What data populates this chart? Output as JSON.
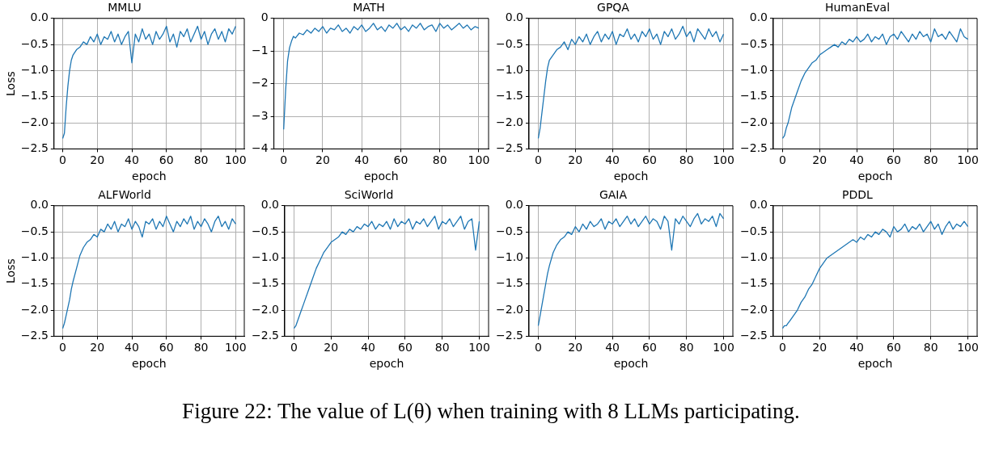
{
  "chart_data": [
    {
      "type": "line",
      "title": "MMLU",
      "xlabel": "epoch",
      "ylabel": "Loss",
      "grid": true,
      "xlim": [
        -5,
        105
      ],
      "ylim": [
        -2.5,
        0
      ],
      "xticks": [
        0,
        20,
        40,
        60,
        80,
        100
      ],
      "yticks": [
        {
          "value": -2.5,
          "label": "−2.5"
        },
        {
          "value": -2,
          "label": "−2.0"
        },
        {
          "value": -1.5,
          "label": "−1.5"
        },
        {
          "value": -1,
          "label": "−1.0"
        },
        {
          "value": -0.5,
          "label": "−0.5"
        },
        {
          "value": 0,
          "label": "0.0"
        }
      ],
      "x": [
        0,
        1,
        2,
        3,
        4,
        5,
        6,
        8,
        10,
        12,
        14,
        16,
        18,
        20,
        22,
        24,
        26,
        28,
        30,
        32,
        34,
        36,
        38,
        40,
        42,
        44,
        46,
        48,
        50,
        52,
        54,
        56,
        58,
        60,
        62,
        64,
        66,
        68,
        70,
        72,
        74,
        76,
        78,
        80,
        82,
        84,
        86,
        88,
        90,
        92,
        94,
        96,
        98,
        100
      ],
      "series": [
        {
          "color": "#1f77b4",
          "values": [
            -2.3,
            -2.2,
            -1.7,
            -1.3,
            -1.0,
            -0.8,
            -0.7,
            -0.6,
            -0.55,
            -0.45,
            -0.5,
            -0.35,
            -0.45,
            -0.3,
            -0.5,
            -0.35,
            -0.4,
            -0.25,
            -0.45,
            -0.3,
            -0.5,
            -0.35,
            -0.25,
            -0.85,
            -0.3,
            -0.45,
            -0.2,
            -0.4,
            -0.3,
            -0.5,
            -0.25,
            -0.4,
            -0.3,
            -0.15,
            -0.45,
            -0.3,
            -0.55,
            -0.25,
            -0.35,
            -0.2,
            -0.45,
            -0.3,
            -0.15,
            -0.4,
            -0.25,
            -0.5,
            -0.3,
            -0.2,
            -0.4,
            -0.25,
            -0.45,
            -0.2,
            -0.3,
            -0.15
          ]
        }
      ]
    },
    {
      "type": "line",
      "title": "MATH",
      "xlabel": "epoch",
      "grid": true,
      "xlim": [
        -5,
        105
      ],
      "ylim": [
        -4,
        0
      ],
      "xticks": [
        0,
        20,
        40,
        60,
        80,
        100
      ],
      "yticks": [
        {
          "value": -4,
          "label": "−4"
        },
        {
          "value": -3,
          "label": "−3"
        },
        {
          "value": -2,
          "label": "−2"
        },
        {
          "value": -1,
          "label": "−1"
        },
        0
      ],
      "x": [
        0,
        1,
        2,
        3,
        4,
        5,
        6,
        8,
        10,
        12,
        14,
        16,
        18,
        20,
        22,
        24,
        26,
        28,
        30,
        32,
        34,
        36,
        38,
        40,
        42,
        44,
        46,
        48,
        50,
        52,
        54,
        56,
        58,
        60,
        62,
        64,
        66,
        68,
        70,
        72,
        74,
        76,
        78,
        80,
        82,
        84,
        86,
        88,
        90,
        92,
        94,
        96,
        98,
        100
      ],
      "series": [
        {
          "color": "#1f77b4",
          "values": [
            -3.4,
            -2.2,
            -1.3,
            -0.9,
            -0.7,
            -0.55,
            -0.6,
            -0.45,
            -0.5,
            -0.35,
            -0.45,
            -0.3,
            -0.4,
            -0.25,
            -0.45,
            -0.3,
            -0.35,
            -0.2,
            -0.4,
            -0.3,
            -0.45,
            -0.25,
            -0.35,
            -0.2,
            -0.4,
            -0.3,
            -0.15,
            -0.35,
            -0.25,
            -0.4,
            -0.2,
            -0.3,
            -0.15,
            -0.35,
            -0.25,
            -0.4,
            -0.2,
            -0.3,
            -0.15,
            -0.35,
            -0.25,
            -0.2,
            -0.4,
            -0.15,
            -0.3,
            -0.2,
            -0.35,
            -0.25,
            -0.15,
            -0.3,
            -0.2,
            -0.35,
            -0.25,
            -0.3
          ]
        }
      ]
    },
    {
      "type": "line",
      "title": "GPQA",
      "xlabel": "epoch",
      "grid": true,
      "xlim": [
        -5,
        105
      ],
      "ylim": [
        -2.5,
        0
      ],
      "xticks": [
        0,
        20,
        40,
        60,
        80,
        100
      ],
      "yticks": [
        {
          "value": -2.5,
          "label": "−2.5"
        },
        {
          "value": -2,
          "label": "−2.0"
        },
        {
          "value": -1.5,
          "label": "−1.5"
        },
        {
          "value": -1,
          "label": "−1.0"
        },
        {
          "value": -0.5,
          "label": "−0.5"
        },
        {
          "value": 0,
          "label": "0.0"
        }
      ],
      "x": [
        0,
        1,
        2,
        3,
        4,
        5,
        6,
        8,
        10,
        12,
        14,
        16,
        18,
        20,
        22,
        24,
        26,
        28,
        30,
        32,
        34,
        36,
        38,
        40,
        42,
        44,
        46,
        48,
        50,
        52,
        54,
        56,
        58,
        60,
        62,
        64,
        66,
        68,
        70,
        72,
        74,
        76,
        78,
        80,
        82,
        84,
        86,
        88,
        90,
        92,
        94,
        96,
        98,
        100
      ],
      "series": [
        {
          "color": "#1f77b4",
          "values": [
            -2.3,
            -2.1,
            -1.8,
            -1.5,
            -1.2,
            -0.95,
            -0.8,
            -0.7,
            -0.6,
            -0.55,
            -0.45,
            -0.6,
            -0.4,
            -0.5,
            -0.35,
            -0.45,
            -0.3,
            -0.5,
            -0.35,
            -0.25,
            -0.45,
            -0.3,
            -0.4,
            -0.25,
            -0.5,
            -0.3,
            -0.35,
            -0.2,
            -0.4,
            -0.3,
            -0.45,
            -0.25,
            -0.35,
            -0.2,
            -0.4,
            -0.3,
            -0.5,
            -0.25,
            -0.35,
            -0.2,
            -0.4,
            -0.3,
            -0.15,
            -0.35,
            -0.25,
            -0.45,
            -0.2,
            -0.3,
            -0.4,
            -0.2,
            -0.35,
            -0.25,
            -0.45,
            -0.3
          ]
        }
      ]
    },
    {
      "type": "line",
      "title": "HumanEval",
      "xlabel": "epoch",
      "grid": true,
      "xlim": [
        -5,
        105
      ],
      "ylim": [
        -2.5,
        0
      ],
      "xticks": [
        0,
        20,
        40,
        60,
        80,
        100
      ],
      "yticks": [
        {
          "value": -2.5,
          "label": "−2.5"
        },
        {
          "value": -2,
          "label": "−2.0"
        },
        {
          "value": -1.5,
          "label": "−1.5"
        },
        {
          "value": -1,
          "label": "−1.0"
        },
        {
          "value": -0.5,
          "label": "−0.5"
        },
        {
          "value": 0,
          "label": "0.0"
        }
      ],
      "x": [
        0,
        1,
        2,
        3,
        4,
        5,
        6,
        8,
        10,
        12,
        14,
        16,
        18,
        20,
        22,
        24,
        26,
        28,
        30,
        32,
        34,
        36,
        38,
        40,
        42,
        44,
        46,
        48,
        50,
        52,
        54,
        56,
        58,
        60,
        62,
        64,
        66,
        68,
        70,
        72,
        74,
        76,
        78,
        80,
        82,
        84,
        86,
        88,
        90,
        92,
        94,
        96,
        98,
        100
      ],
      "series": [
        {
          "color": "#1f77b4",
          "values": [
            -2.3,
            -2.25,
            -2.1,
            -2.0,
            -1.85,
            -1.7,
            -1.6,
            -1.4,
            -1.2,
            -1.05,
            -0.95,
            -0.85,
            -0.8,
            -0.7,
            -0.65,
            -0.6,
            -0.55,
            -0.5,
            -0.55,
            -0.45,
            -0.5,
            -0.4,
            -0.45,
            -0.35,
            -0.45,
            -0.4,
            -0.3,
            -0.45,
            -0.35,
            -0.4,
            -0.3,
            -0.5,
            -0.35,
            -0.3,
            -0.4,
            -0.25,
            -0.35,
            -0.45,
            -0.3,
            -0.4,
            -0.25,
            -0.35,
            -0.3,
            -0.45,
            -0.2,
            -0.35,
            -0.3,
            -0.4,
            -0.25,
            -0.35,
            -0.45,
            -0.2,
            -0.35,
            -0.4
          ]
        }
      ]
    },
    {
      "type": "line",
      "title": "ALFWorld",
      "xlabel": "epoch",
      "ylabel": "Loss",
      "grid": true,
      "xlim": [
        -5,
        105
      ],
      "ylim": [
        -2.5,
        0
      ],
      "xticks": [
        0,
        20,
        40,
        60,
        80,
        100
      ],
      "yticks": [
        {
          "value": -2.5,
          "label": "−2.5"
        },
        {
          "value": -2,
          "label": "−2.0"
        },
        {
          "value": -1.5,
          "label": "−1.5"
        },
        {
          "value": -1,
          "label": "−1.0"
        },
        {
          "value": -0.5,
          "label": "−0.5"
        },
        {
          "value": 0,
          "label": "0.0"
        }
      ],
      "x": [
        0,
        1,
        2,
        3,
        4,
        5,
        6,
        8,
        10,
        12,
        14,
        16,
        18,
        20,
        22,
        24,
        26,
        28,
        30,
        32,
        34,
        36,
        38,
        40,
        42,
        44,
        46,
        48,
        50,
        52,
        54,
        56,
        58,
        60,
        62,
        64,
        66,
        68,
        70,
        72,
        74,
        76,
        78,
        80,
        82,
        84,
        86,
        88,
        90,
        92,
        94,
        96,
        98,
        100
      ],
      "series": [
        {
          "color": "#1f77b4",
          "values": [
            -2.35,
            -2.25,
            -2.1,
            -1.95,
            -1.8,
            -1.6,
            -1.45,
            -1.2,
            -0.95,
            -0.8,
            -0.7,
            -0.65,
            -0.55,
            -0.6,
            -0.45,
            -0.5,
            -0.35,
            -0.45,
            -0.3,
            -0.5,
            -0.35,
            -0.4,
            -0.25,
            -0.45,
            -0.3,
            -0.4,
            -0.6,
            -0.3,
            -0.35,
            -0.25,
            -0.45,
            -0.3,
            -0.4,
            -0.2,
            -0.35,
            -0.5,
            -0.3,
            -0.4,
            -0.25,
            -0.35,
            -0.2,
            -0.45,
            -0.3,
            -0.4,
            -0.25,
            -0.35,
            -0.5,
            -0.3,
            -0.2,
            -0.4,
            -0.3,
            -0.45,
            -0.25,
            -0.35
          ]
        }
      ]
    },
    {
      "type": "line",
      "title": "SciWorld",
      "xlabel": "epoch",
      "grid": true,
      "xlim": [
        -5,
        105
      ],
      "ylim": [
        -2.5,
        0
      ],
      "xticks": [
        0,
        20,
        40,
        60,
        80,
        100
      ],
      "yticks": [
        {
          "value": -2.5,
          "label": "−2.5"
        },
        {
          "value": -2,
          "label": "−2.0"
        },
        {
          "value": -1.5,
          "label": "−1.5"
        },
        {
          "value": -1,
          "label": "−1.0"
        },
        {
          "value": -0.5,
          "label": "−0.5"
        },
        {
          "value": 0,
          "label": "0.0"
        }
      ],
      "x": [
        0,
        1,
        2,
        3,
        4,
        5,
        6,
        8,
        10,
        12,
        14,
        16,
        18,
        20,
        22,
        24,
        26,
        28,
        30,
        32,
        34,
        36,
        38,
        40,
        42,
        44,
        46,
        48,
        50,
        52,
        54,
        56,
        58,
        60,
        62,
        64,
        66,
        68,
        70,
        72,
        74,
        76,
        78,
        80,
        82,
        84,
        86,
        88,
        90,
        92,
        94,
        96,
        98,
        100
      ],
      "series": [
        {
          "color": "#1f77b4",
          "values": [
            -2.35,
            -2.3,
            -2.2,
            -2.1,
            -2.0,
            -1.9,
            -1.8,
            -1.6,
            -1.4,
            -1.2,
            -1.05,
            -0.9,
            -0.8,
            -0.7,
            -0.65,
            -0.6,
            -0.5,
            -0.55,
            -0.45,
            -0.5,
            -0.4,
            -0.45,
            -0.35,
            -0.4,
            -0.3,
            -0.45,
            -0.35,
            -0.4,
            -0.3,
            -0.45,
            -0.25,
            -0.4,
            -0.3,
            -0.35,
            -0.25,
            -0.45,
            -0.3,
            -0.35,
            -0.25,
            -0.4,
            -0.3,
            -0.2,
            -0.45,
            -0.3,
            -0.35,
            -0.25,
            -0.4,
            -0.3,
            -0.2,
            -0.45,
            -0.3,
            -0.25,
            -0.85,
            -0.3
          ]
        }
      ]
    },
    {
      "type": "line",
      "title": "GAIA",
      "xlabel": "epoch",
      "grid": true,
      "xlim": [
        -5,
        105
      ],
      "ylim": [
        -2.5,
        0
      ],
      "xticks": [
        0,
        20,
        40,
        60,
        80,
        100
      ],
      "yticks": [
        {
          "value": -2.5,
          "label": "−2.5"
        },
        {
          "value": -2,
          "label": "−2.0"
        },
        {
          "value": -1.5,
          "label": "−1.5"
        },
        {
          "value": -1,
          "label": "−1.0"
        },
        {
          "value": -0.5,
          "label": "−0.5"
        },
        {
          "value": 0,
          "label": "0.0"
        }
      ],
      "x": [
        0,
        1,
        2,
        3,
        4,
        5,
        6,
        8,
        10,
        12,
        14,
        16,
        18,
        20,
        22,
        24,
        26,
        28,
        30,
        32,
        34,
        36,
        38,
        40,
        42,
        44,
        46,
        48,
        50,
        52,
        54,
        56,
        58,
        60,
        62,
        64,
        66,
        68,
        70,
        72,
        74,
        76,
        78,
        80,
        82,
        84,
        86,
        88,
        90,
        92,
        94,
        96,
        98,
        100
      ],
      "series": [
        {
          "color": "#1f77b4",
          "values": [
            -2.3,
            -2.1,
            -1.9,
            -1.7,
            -1.5,
            -1.3,
            -1.15,
            -0.9,
            -0.75,
            -0.65,
            -0.6,
            -0.5,
            -0.55,
            -0.4,
            -0.5,
            -0.35,
            -0.45,
            -0.3,
            -0.4,
            -0.35,
            -0.25,
            -0.45,
            -0.3,
            -0.35,
            -0.25,
            -0.4,
            -0.3,
            -0.2,
            -0.35,
            -0.25,
            -0.4,
            -0.3,
            -0.2,
            -0.35,
            -0.25,
            -0.3,
            -0.45,
            -0.2,
            -0.3,
            -0.85,
            -0.25,
            -0.35,
            -0.2,
            -0.3,
            -0.4,
            -0.25,
            -0.15,
            -0.35,
            -0.25,
            -0.3,
            -0.2,
            -0.4,
            -0.15,
            -0.25
          ]
        }
      ]
    },
    {
      "type": "line",
      "title": "PDDL",
      "xlabel": "epoch",
      "grid": true,
      "xlim": [
        -5,
        105
      ],
      "ylim": [
        -2.5,
        0
      ],
      "xticks": [
        0,
        20,
        40,
        60,
        80,
        100
      ],
      "yticks": [
        {
          "value": -2.5,
          "label": "−2.5"
        },
        {
          "value": -2,
          "label": "−2.0"
        },
        {
          "value": -1.5,
          "label": "−1.5"
        },
        {
          "value": -1,
          "label": "−1.0"
        },
        {
          "value": -0.5,
          "label": "−0.5"
        },
        {
          "value": 0,
          "label": "0.0"
        }
      ],
      "annotations": [
        "Figure 22: The value of L(θ) when training with 8 LLMs participating."
      ],
      "x": [
        0,
        1,
        2,
        3,
        4,
        5,
        6,
        8,
        10,
        12,
        14,
        16,
        18,
        20,
        22,
        24,
        26,
        28,
        30,
        32,
        34,
        36,
        38,
        40,
        42,
        44,
        46,
        48,
        50,
        52,
        54,
        56,
        58,
        60,
        62,
        64,
        66,
        68,
        70,
        72,
        74,
        76,
        78,
        80,
        82,
        84,
        86,
        88,
        90,
        92,
        94,
        96,
        98,
        100
      ],
      "series": [
        {
          "color": "#1f77b4",
          "values": [
            -2.35,
            -2.3,
            -2.3,
            -2.25,
            -2.2,
            -2.15,
            -2.1,
            -2.0,
            -1.85,
            -1.75,
            -1.6,
            -1.5,
            -1.35,
            -1.2,
            -1.1,
            -1.0,
            -0.95,
            -0.9,
            -0.85,
            -0.8,
            -0.75,
            -0.7,
            -0.65,
            -0.7,
            -0.6,
            -0.65,
            -0.55,
            -0.6,
            -0.5,
            -0.55,
            -0.45,
            -0.5,
            -0.6,
            -0.4,
            -0.5,
            -0.45,
            -0.35,
            -0.5,
            -0.4,
            -0.45,
            -0.35,
            -0.5,
            -0.4,
            -0.3,
            -0.45,
            -0.35,
            -0.55,
            -0.4,
            -0.3,
            -0.45,
            -0.35,
            -0.4,
            -0.3,
            -0.4
          ]
        }
      ]
    }
  ]
}
